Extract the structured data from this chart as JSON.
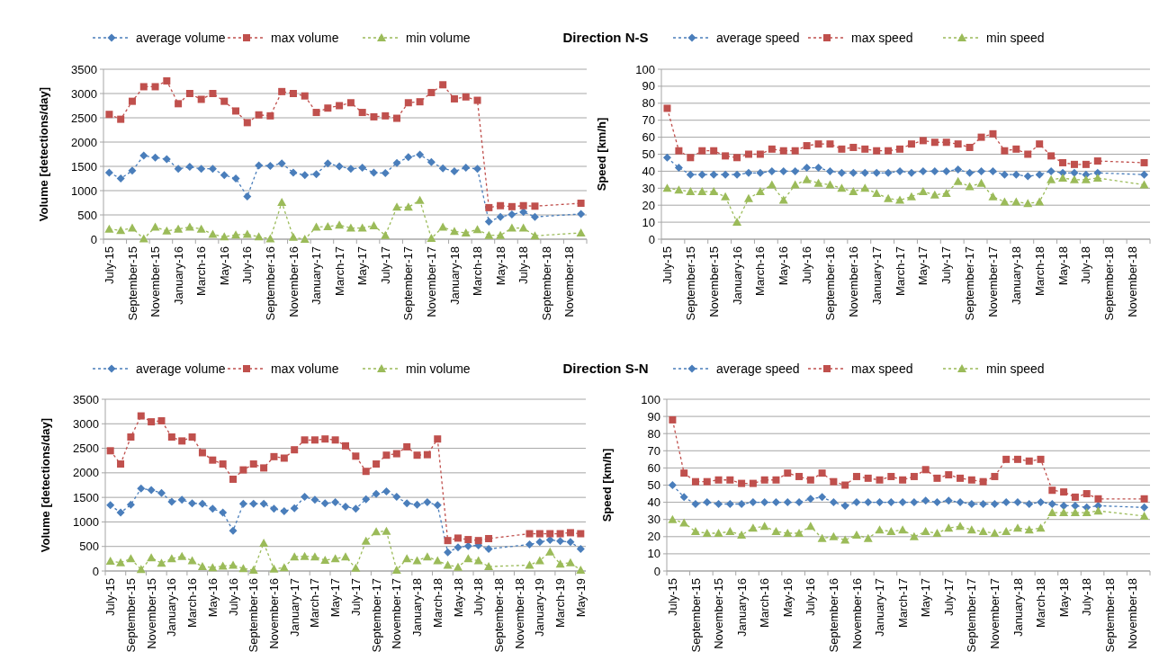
{
  "chart_data": [
    {
      "type": "line",
      "title": "Direction N-S",
      "ylabel": "Volume [detections/day]",
      "categories": [
        "July-15",
        null,
        "September-15",
        null,
        "November-15",
        null,
        "January-16",
        null,
        "March-16",
        null,
        "May-16",
        null,
        "July-16",
        null,
        "September-16",
        null,
        "November-16",
        null,
        "January-17",
        null,
        "March-17",
        null,
        "May-17",
        null,
        "July-17",
        null,
        "September-17",
        null,
        "November-17",
        null,
        "January-18",
        null,
        "March-18",
        null,
        "May-18",
        null,
        "July-18",
        null,
        "September-18",
        null,
        "November-18",
        null
      ],
      "ylim": [
        0,
        3500
      ],
      "yticks": [
        0,
        500,
        1000,
        1500,
        2000,
        2500,
        3000,
        3500
      ],
      "grid": "y",
      "legend": "top",
      "line_style": "dashed",
      "series": [
        {
          "name": "average volume",
          "color": "#4a7ebb",
          "marker": "diamond",
          "values": [
            1370,
            1250,
            1410,
            1720,
            1680,
            1650,
            1450,
            1490,
            1450,
            1450,
            1320,
            1250,
            880,
            1520,
            1510,
            1560,
            1370,
            1320,
            1340,
            1560,
            1500,
            1450,
            1470,
            1370,
            1360,
            1570,
            1690,
            1740,
            1590,
            1460,
            1400,
            1470,
            1450,
            360,
            460,
            510,
            560,
            460,
            null,
            null,
            null,
            520
          ]
        },
        {
          "name": "max volume",
          "color": "#c0504d",
          "marker": "square",
          "values": [
            2570,
            2470,
            2840,
            3140,
            3140,
            3260,
            2790,
            3000,
            2880,
            3000,
            2840,
            2640,
            2400,
            2560,
            2540,
            3040,
            3000,
            2950,
            2610,
            2700,
            2750,
            2810,
            2610,
            2520,
            2540,
            2490,
            2810,
            2830,
            3020,
            3180,
            2890,
            2930,
            2860,
            650,
            690,
            670,
            690,
            680,
            null,
            null,
            null,
            740
          ]
        },
        {
          "name": "min volume",
          "color": "#9bbb59",
          "marker": "triangle",
          "values": [
            210,
            180,
            230,
            10,
            250,
            170,
            210,
            250,
            210,
            100,
            50,
            90,
            100,
            50,
            10,
            760,
            40,
            0,
            250,
            260,
            290,
            230,
            230,
            280,
            80,
            660,
            660,
            800,
            20,
            250,
            160,
            130,
            200,
            80,
            80,
            230,
            230,
            70,
            null,
            null,
            null,
            130
          ]
        }
      ]
    },
    {
      "type": "line",
      "ylabel": "Speed [km/h]",
      "categories": [
        "July-15",
        null,
        "September-15",
        null,
        "November-15",
        null,
        "January-16",
        null,
        "March-16",
        null,
        "May-16",
        null,
        "July-16",
        null,
        "September-16",
        null,
        "November-16",
        null,
        "January-17",
        null,
        "March-17",
        null,
        "May-17",
        null,
        "July-17",
        null,
        "September-17",
        null,
        "November-17",
        null,
        "January-18",
        null,
        "March-18",
        null,
        "May-18",
        null,
        "July-18",
        null,
        "September-18",
        null,
        "November-18",
        null
      ],
      "ylim": [
        0,
        100
      ],
      "yticks": [
        0,
        10,
        20,
        30,
        40,
        50,
        60,
        70,
        80,
        90,
        100
      ],
      "grid": "y",
      "legend": "top",
      "line_style": "dashed",
      "series": [
        {
          "name": "average speed",
          "color": "#4a7ebb",
          "marker": "diamond",
          "values": [
            48,
            42,
            38,
            38,
            38,
            38,
            38,
            39,
            39,
            40,
            40,
            40,
            42,
            42,
            40,
            39,
            39,
            39,
            39,
            39,
            40,
            39,
            40,
            40,
            40,
            41,
            39,
            40,
            40,
            38,
            38,
            37,
            38,
            40,
            39,
            39,
            38,
            39,
            null,
            null,
            null,
            38
          ]
        },
        {
          "name": "max speed",
          "color": "#c0504d",
          "marker": "square",
          "values": [
            77,
            52,
            48,
            52,
            52,
            49,
            48,
            50,
            50,
            53,
            52,
            52,
            55,
            56,
            56,
            53,
            54,
            53,
            52,
            52,
            53,
            56,
            58,
            57,
            57,
            56,
            54,
            60,
            62,
            52,
            53,
            50,
            56,
            49,
            45,
            44,
            44,
            46,
            null,
            null,
            null,
            45
          ]
        },
        {
          "name": "min speed",
          "color": "#9bbb59",
          "marker": "triangle",
          "values": [
            30,
            29,
            28,
            28,
            28,
            25,
            10,
            24,
            28,
            32,
            23,
            32,
            35,
            33,
            32,
            30,
            28,
            30,
            27,
            24,
            23,
            25,
            28,
            26,
            27,
            34,
            31,
            33,
            25,
            22,
            22,
            21,
            22,
            35,
            36,
            35,
            35,
            36,
            null,
            null,
            null,
            32
          ]
        }
      ]
    },
    {
      "type": "line",
      "title": "Direction S-N",
      "ylabel": "Volume [detections/day]",
      "categories": [
        "July-15",
        null,
        "September-15",
        null,
        "November-15",
        null,
        "January-16",
        null,
        "March-16",
        null,
        "May-16",
        null,
        "July-16",
        null,
        "September-16",
        null,
        "November-16",
        null,
        "January-17",
        null,
        "March-17",
        null,
        "May-17",
        null,
        "July-17",
        null,
        "September-17",
        null,
        "November-17",
        null,
        "January-18",
        null,
        "March-18",
        null,
        "May-18",
        null,
        "July-18",
        null,
        "September-18",
        null,
        "November-18",
        null,
        "January-19",
        null,
        "March-19",
        null,
        "May-19"
      ],
      "ylim": [
        0,
        3500
      ],
      "yticks": [
        0,
        500,
        1000,
        1500,
        2000,
        2500,
        3000,
        3500
      ],
      "grid": "y",
      "legend": "top",
      "line_style": "dashed",
      "series": [
        {
          "name": "average volume",
          "color": "#4a7ebb",
          "marker": "diamond",
          "values": [
            1340,
            1190,
            1350,
            1680,
            1650,
            1590,
            1410,
            1450,
            1380,
            1370,
            1270,
            1190,
            820,
            1370,
            1370,
            1370,
            1270,
            1220,
            1280,
            1510,
            1450,
            1380,
            1400,
            1310,
            1270,
            1460,
            1570,
            1620,
            1510,
            1380,
            1350,
            1400,
            1340,
            380,
            480,
            510,
            520,
            450,
            null,
            null,
            null,
            540,
            590,
            630,
            610,
            590,
            450
          ]
        },
        {
          "name": "max volume",
          "color": "#c0504d",
          "marker": "square",
          "values": [
            2450,
            2180,
            2730,
            3160,
            3040,
            3060,
            2730,
            2650,
            2730,
            2410,
            2260,
            2180,
            1870,
            2060,
            2180,
            2100,
            2330,
            2300,
            2470,
            2670,
            2670,
            2690,
            2670,
            2550,
            2340,
            2030,
            2180,
            2360,
            2390,
            2530,
            2360,
            2370,
            2690,
            620,
            670,
            640,
            620,
            660,
            null,
            null,
            null,
            760,
            760,
            760,
            760,
            780,
            760
          ]
        },
        {
          "name": "min volume",
          "color": "#9bbb59",
          "marker": "triangle",
          "values": [
            200,
            170,
            250,
            30,
            270,
            160,
            250,
            300,
            210,
            90,
            70,
            100,
            120,
            50,
            20,
            570,
            40,
            70,
            290,
            300,
            290,
            220,
            250,
            290,
            60,
            610,
            800,
            810,
            20,
            250,
            210,
            290,
            210,
            120,
            80,
            250,
            210,
            90,
            null,
            null,
            null,
            120,
            210,
            390,
            140,
            170,
            20
          ]
        }
      ]
    },
    {
      "type": "line",
      "ylabel": "Speed [km/h]",
      "categories": [
        "July-15",
        null,
        "September-15",
        null,
        "November-15",
        null,
        "January-16",
        null,
        "March-16",
        null,
        "May-16",
        null,
        "July-16",
        null,
        "September-16",
        null,
        "November-16",
        null,
        "January-17",
        null,
        "March-17",
        null,
        "May-17",
        null,
        "July-17",
        null,
        "September-17",
        null,
        "November-17",
        null,
        "January-18",
        null,
        "March-18",
        null,
        "May-18",
        null,
        "July-18",
        null,
        "September-18",
        null,
        "November-18",
        null
      ],
      "ylim": [
        0,
        100
      ],
      "yticks": [
        0,
        10,
        20,
        30,
        40,
        50,
        60,
        70,
        80,
        90,
        100
      ],
      "grid": "y",
      "legend": "top",
      "line_style": "dashed",
      "series": [
        {
          "name": "average speed",
          "color": "#4a7ebb",
          "marker": "diamond",
          "values": [
            50,
            43,
            39,
            40,
            39,
            39,
            39,
            40,
            40,
            40,
            40,
            40,
            42,
            43,
            40,
            38,
            40,
            40,
            40,
            40,
            40,
            40,
            41,
            40,
            41,
            40,
            39,
            39,
            39,
            40,
            40,
            39,
            40,
            39,
            38,
            38,
            37,
            38,
            null,
            null,
            null,
            37
          ]
        },
        {
          "name": "max speed",
          "color": "#c0504d",
          "marker": "square",
          "values": [
            88,
            57,
            52,
            52,
            53,
            53,
            51,
            51,
            53,
            53,
            57,
            55,
            53,
            57,
            52,
            50,
            55,
            54,
            53,
            55,
            53,
            55,
            59,
            54,
            56,
            54,
            53,
            52,
            55,
            65,
            65,
            64,
            65,
            47,
            46,
            43,
            45,
            42,
            null,
            null,
            null,
            42
          ]
        },
        {
          "name": "min speed",
          "color": "#9bbb59",
          "marker": "triangle",
          "values": [
            30,
            28,
            23,
            22,
            22,
            23,
            21,
            25,
            26,
            23,
            22,
            22,
            26,
            19,
            20,
            18,
            21,
            19,
            24,
            23,
            24,
            20,
            23,
            22,
            25,
            26,
            24,
            23,
            22,
            23,
            25,
            24,
            25,
            34,
            34,
            34,
            34,
            35,
            null,
            null,
            null,
            32
          ]
        }
      ]
    }
  ]
}
